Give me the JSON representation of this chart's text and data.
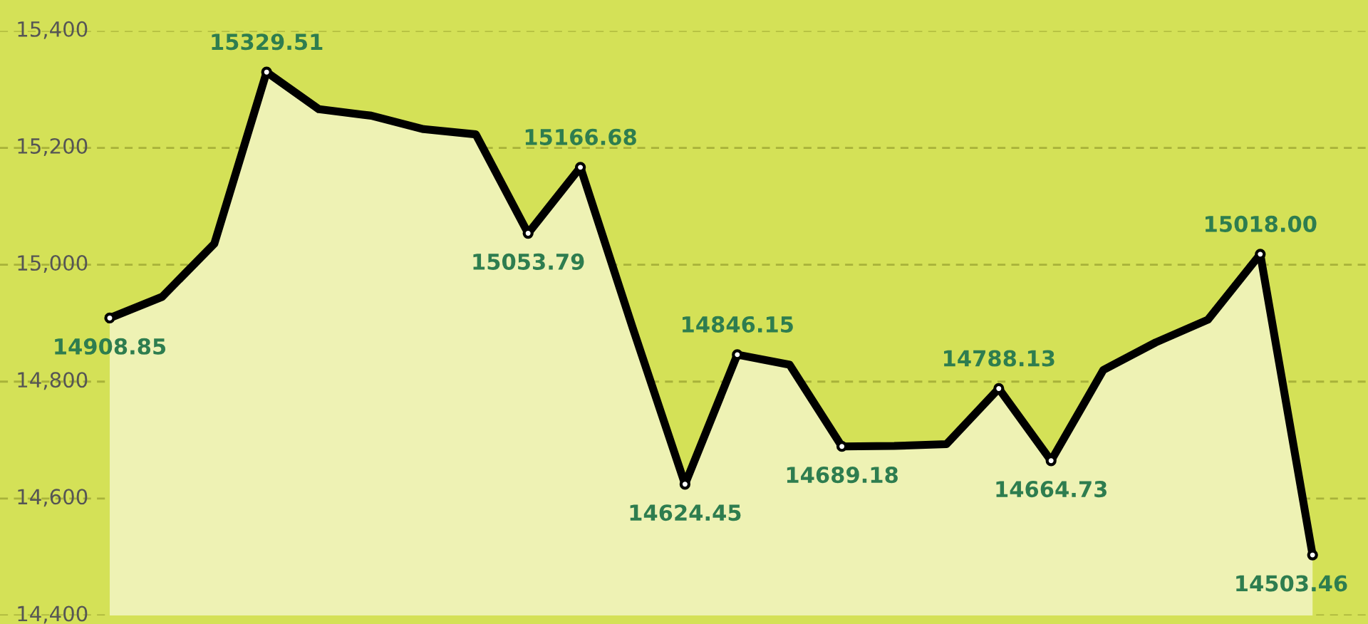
{
  "chart_data": {
    "type": "area",
    "categories": [
      null,
      null,
      null,
      null,
      null,
      null,
      null,
      null,
      null,
      null,
      null,
      null,
      null,
      null,
      null,
      null,
      null,
      null,
      null,
      null,
      null,
      null,
      null,
      null
    ],
    "series": [
      {
        "color": "#000000",
        "values": [
          14908.85,
          14945,
          15036,
          15329.51,
          15266,
          15255,
          15232,
          15223,
          15053.79,
          15166.68,
          14892,
          14624.45,
          14846.15,
          14829,
          14689.18,
          14690,
          14693,
          14788.13,
          14664.73,
          14820,
          14867,
          14906,
          15018.0,
          14503.46
        ],
        "value_labels": [
          "14908.85",
          null,
          null,
          "15329.51",
          null,
          null,
          null,
          null,
          "15053.79",
          "15166.68",
          null,
          "14624.45",
          "14846.15",
          null,
          "14689.18",
          null,
          null,
          "14788.13",
          "14664.73",
          null,
          null,
          null,
          "15018.00",
          "14503.46"
        ]
      }
    ],
    "ylim": [
      14400,
      15400
    ],
    "yticks": [
      {
        "value": 14400,
        "label": "14,400"
      },
      {
        "value": 14600,
        "label": "14,600"
      },
      {
        "value": 14800,
        "label": "14,800"
      },
      {
        "value": 15000,
        "label": "15,000"
      },
      {
        "value": 15200,
        "label": "15,200"
      },
      {
        "value": 15400,
        "label": "15,400"
      }
    ],
    "grid": "y",
    "line_style": "solid",
    "tick_labels": "y"
  }
}
